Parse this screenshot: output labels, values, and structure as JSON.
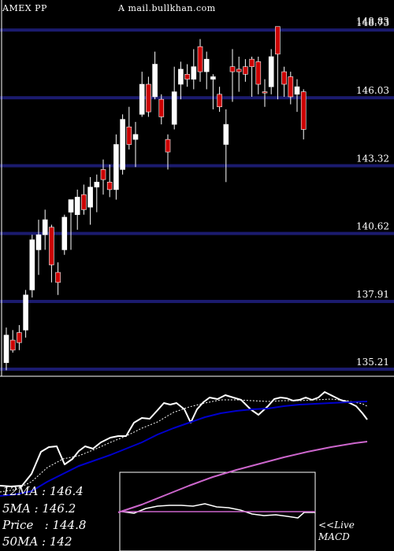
{
  "header": {
    "ticker": "AMEX  PP",
    "source": "A mail.bullkhan.com"
  },
  "info": {
    "ma12": "12MA : 146.4",
    "ma5": "5MA : 146.2",
    "price": "Price   : 144.8",
    "ma50": "50MA : 142"
  },
  "macd": {
    "line1": "<<Live",
    "line2": "MACD"
  },
  "colors": {
    "background": "#000000",
    "gridline": "#1b1b6e",
    "up_candle": "#ffffff",
    "down_candle": "#cc0000",
    "ma_fast": "#ffffff",
    "ma_mid": "#0000cc",
    "ma_slow": "#cc66cc"
  },
  "chart_data": {
    "type": "candlestick",
    "y_ticks": [
      148.73,
      146.03,
      143.32,
      140.62,
      137.91,
      135.21
    ],
    "y_tick_labels": [
      "148.73",
      "146.03",
      "143.32",
      "140.62",
      "137.91",
      "135.21"
    ],
    "top_label_overlap": "148.83",
    "ylim": [
      135.21,
      149.0
    ],
    "candles": [
      {
        "o": 135.5,
        "h": 136.9,
        "l": 135.2,
        "c": 136.6,
        "dir": "up"
      },
      {
        "o": 136.4,
        "h": 136.8,
        "l": 135.9,
        "c": 136.0,
        "dir": "down"
      },
      {
        "o": 136.3,
        "h": 137.0,
        "l": 136.0,
        "c": 136.7,
        "dir": "down"
      },
      {
        "o": 136.8,
        "h": 138.4,
        "l": 136.5,
        "c": 138.2,
        "dir": "up"
      },
      {
        "o": 138.4,
        "h": 140.6,
        "l": 138.1,
        "c": 140.4,
        "dir": "up"
      },
      {
        "o": 140.0,
        "h": 141.2,
        "l": 139.0,
        "c": 140.6,
        "dir": "up"
      },
      {
        "o": 140.6,
        "h": 141.6,
        "l": 140.0,
        "c": 141.2,
        "dir": "up"
      },
      {
        "o": 140.9,
        "h": 141.0,
        "l": 138.7,
        "c": 139.4,
        "dir": "down"
      },
      {
        "o": 139.1,
        "h": 139.5,
        "l": 138.2,
        "c": 138.7,
        "dir": "down"
      },
      {
        "o": 140.0,
        "h": 141.4,
        "l": 139.8,
        "c": 141.3,
        "dir": "up"
      },
      {
        "o": 141.5,
        "h": 142.0,
        "l": 140.0,
        "c": 142.0,
        "dir": "up"
      },
      {
        "o": 141.4,
        "h": 142.4,
        "l": 140.8,
        "c": 142.1,
        "dir": "up"
      },
      {
        "o": 142.2,
        "h": 142.6,
        "l": 141.4,
        "c": 141.6,
        "dir": "down"
      },
      {
        "o": 141.7,
        "h": 142.9,
        "l": 141.0,
        "c": 142.5,
        "dir": "up"
      },
      {
        "o": 142.5,
        "h": 143.0,
        "l": 141.5,
        "c": 142.7,
        "dir": "up"
      },
      {
        "o": 142.8,
        "h": 143.6,
        "l": 142.2,
        "c": 143.2,
        "dir": "down"
      },
      {
        "o": 142.7,
        "h": 143.4,
        "l": 142.1,
        "c": 142.4,
        "dir": "down"
      },
      {
        "o": 142.4,
        "h": 144.6,
        "l": 142.0,
        "c": 144.2,
        "dir": "up"
      },
      {
        "o": 143.2,
        "h": 145.4,
        "l": 143.0,
        "c": 145.2,
        "dir": "up"
      },
      {
        "o": 144.9,
        "h": 145.7,
        "l": 144.0,
        "c": 144.2,
        "dir": "down"
      },
      {
        "o": 144.4,
        "h": 145.1,
        "l": 143.3,
        "c": 144.6,
        "dir": "up"
      },
      {
        "o": 145.4,
        "h": 147.1,
        "l": 145.3,
        "c": 146.6,
        "dir": "up"
      },
      {
        "o": 146.6,
        "h": 146.9,
        "l": 145.3,
        "c": 145.5,
        "dir": "down"
      },
      {
        "o": 146.1,
        "h": 147.9,
        "l": 146.0,
        "c": 147.4,
        "dir": "up"
      },
      {
        "o": 146.0,
        "h": 146.2,
        "l": 145.0,
        "c": 145.3,
        "dir": "down"
      },
      {
        "o": 144.4,
        "h": 144.6,
        "l": 143.2,
        "c": 143.9,
        "dir": "down"
      },
      {
        "o": 145.0,
        "h": 147.3,
        "l": 144.8,
        "c": 146.3,
        "dir": "up"
      },
      {
        "o": 146.6,
        "h": 147.5,
        "l": 146.0,
        "c": 147.2,
        "dir": "up"
      },
      {
        "o": 147.0,
        "h": 147.4,
        "l": 146.5,
        "c": 146.8,
        "dir": "down"
      },
      {
        "o": 146.8,
        "h": 148.0,
        "l": 146.4,
        "c": 147.3,
        "dir": "up"
      },
      {
        "o": 148.1,
        "h": 148.4,
        "l": 146.7,
        "c": 147.1,
        "dir": "down"
      },
      {
        "o": 147.6,
        "h": 147.9,
        "l": 146.4,
        "c": 147.1,
        "dir": "up"
      },
      {
        "o": 146.9,
        "h": 147.0,
        "l": 145.6,
        "c": 146.8,
        "dir": "up"
      },
      {
        "o": 146.2,
        "h": 146.5,
        "l": 145.5,
        "c": 145.7,
        "dir": "down"
      },
      {
        "o": 145.0,
        "h": 145.6,
        "l": 142.7,
        "c": 144.2,
        "dir": "up"
      },
      {
        "o": 147.3,
        "h": 148.0,
        "l": 145.9,
        "c": 147.1,
        "dir": "down"
      },
      {
        "o": 147.1,
        "h": 147.7,
        "l": 146.3,
        "c": 147.2,
        "dir": "down"
      },
      {
        "o": 147.3,
        "h": 147.6,
        "l": 146.7,
        "c": 147.0,
        "dir": "down"
      },
      {
        "o": 147.3,
        "h": 147.7,
        "l": 146.1,
        "c": 147.6,
        "dir": "down"
      },
      {
        "o": 147.5,
        "h": 147.7,
        "l": 146.2,
        "c": 146.6,
        "dir": "down"
      },
      {
        "o": 146.3,
        "h": 146.8,
        "l": 145.7,
        "c": 146.3,
        "dir": "down"
      },
      {
        "o": 146.5,
        "h": 148.0,
        "l": 146.2,
        "c": 147.7,
        "dir": "up"
      },
      {
        "o": 148.9,
        "h": 148.9,
        "l": 146.0,
        "c": 147.8,
        "dir": "down"
      },
      {
        "o": 146.6,
        "h": 147.3,
        "l": 146.1,
        "c": 147.1,
        "dir": "down"
      },
      {
        "o": 146.9,
        "h": 147.1,
        "l": 145.8,
        "c": 146.1,
        "dir": "down"
      },
      {
        "o": 146.5,
        "h": 146.8,
        "l": 145.5,
        "c": 146.2,
        "dir": "up"
      },
      {
        "o": 146.3,
        "h": 146.4,
        "l": 144.4,
        "c": 144.8,
        "dir": "down"
      }
    ],
    "indicator_lines": [
      {
        "key": "price_line",
        "color": "#ffffff",
        "width": 2,
        "points": [
          [
            0,
            617
          ],
          [
            14,
            618
          ],
          [
            28,
            617
          ],
          [
            40,
            602
          ],
          [
            52,
            574
          ],
          [
            62,
            568
          ],
          [
            72,
            567
          ],
          [
            82,
            590
          ],
          [
            92,
            583
          ],
          [
            100,
            573
          ],
          [
            108,
            567
          ],
          [
            118,
            570
          ],
          [
            128,
            562
          ],
          [
            140,
            556
          ],
          [
            150,
            554
          ],
          [
            160,
            554
          ],
          [
            170,
            537
          ],
          [
            180,
            531
          ],
          [
            190,
            532
          ],
          [
            200,
            521
          ],
          [
            208,
            512
          ],
          [
            216,
            514
          ],
          [
            224,
            512
          ],
          [
            234,
            520
          ],
          [
            242,
            537
          ],
          [
            250,
            520
          ],
          [
            258,
            511
          ],
          [
            266,
            505
          ],
          [
            276,
            507
          ],
          [
            286,
            502
          ],
          [
            296,
            505
          ],
          [
            306,
            508
          ],
          [
            318,
            520
          ],
          [
            328,
            527
          ],
          [
            340,
            516
          ],
          [
            348,
            507
          ],
          [
            356,
            505
          ],
          [
            364,
            506
          ],
          [
            372,
            509
          ],
          [
            380,
            508
          ],
          [
            388,
            505
          ],
          [
            396,
            508
          ],
          [
            404,
            505
          ],
          [
            412,
            498
          ],
          [
            422,
            503
          ],
          [
            432,
            508
          ],
          [
            442,
            511
          ],
          [
            452,
            516
          ],
          [
            460,
            525
          ],
          [
            466,
            533
          ]
        ]
      },
      {
        "key": "ma5",
        "color": "#ffffff",
        "width": 1,
        "dash": "2,2",
        "points": [
          [
            0,
            625
          ],
          [
            20,
            622
          ],
          [
            40,
            612
          ],
          [
            60,
            594
          ],
          [
            80,
            583
          ],
          [
            100,
            579
          ],
          [
            120,
            571
          ],
          [
            140,
            562
          ],
          [
            160,
            554
          ],
          [
            180,
            544
          ],
          [
            200,
            536
          ],
          [
            220,
            524
          ],
          [
            240,
            517
          ],
          [
            260,
            512
          ],
          [
            280,
            508
          ],
          [
            300,
            508
          ],
          [
            320,
            509
          ],
          [
            340,
            510
          ],
          [
            360,
            509
          ],
          [
            380,
            509
          ],
          [
            400,
            508
          ],
          [
            420,
            507
          ],
          [
            440,
            509
          ],
          [
            460,
            513
          ],
          [
            466,
            516
          ]
        ]
      },
      {
        "key": "ma12",
        "color": "#0000cc",
        "width": 2,
        "points": [
          [
            0,
            630
          ],
          [
            20,
            628
          ],
          [
            40,
            624
          ],
          [
            60,
            612
          ],
          [
            80,
            602
          ],
          [
            100,
            592
          ],
          [
            120,
            585
          ],
          [
            140,
            578
          ],
          [
            160,
            570
          ],
          [
            180,
            562
          ],
          [
            200,
            552
          ],
          [
            220,
            544
          ],
          [
            240,
            537
          ],
          [
            260,
            530
          ],
          [
            280,
            525
          ],
          [
            300,
            522
          ],
          [
            320,
            520
          ],
          [
            340,
            519
          ],
          [
            360,
            516
          ],
          [
            380,
            514
          ],
          [
            400,
            513
          ],
          [
            420,
            512
          ],
          [
            440,
            511
          ],
          [
            466,
            510
          ]
        ]
      },
      {
        "key": "ma50",
        "color": "#cc66cc",
        "width": 2,
        "points": [
          [
            150,
            651
          ],
          [
            180,
            641
          ],
          [
            210,
            629
          ],
          [
            240,
            617
          ],
          [
            270,
            606
          ],
          [
            300,
            597
          ],
          [
            330,
            589
          ],
          [
            360,
            581
          ],
          [
            390,
            574
          ],
          [
            420,
            568
          ],
          [
            450,
            563
          ],
          [
            466,
            561
          ]
        ]
      },
      {
        "key": "macd_line",
        "color": "#ffffff",
        "width": 1.5,
        "points": [
          [
            155,
            650
          ],
          [
            170,
            652
          ],
          [
            185,
            646
          ],
          [
            200,
            643
          ],
          [
            215,
            642
          ],
          [
            230,
            642
          ],
          [
            245,
            643
          ],
          [
            260,
            640
          ],
          [
            275,
            644
          ],
          [
            290,
            645
          ],
          [
            305,
            648
          ],
          [
            320,
            653
          ],
          [
            335,
            655
          ],
          [
            350,
            654
          ],
          [
            365,
            656
          ],
          [
            378,
            658
          ],
          [
            386,
            651
          ],
          [
            400,
            651
          ]
        ]
      },
      {
        "key": "macd_signal",
        "color": "#cc66cc",
        "width": 1.5,
        "points": [
          [
            152,
            650
          ],
          [
            400,
            650
          ]
        ]
      }
    ]
  }
}
